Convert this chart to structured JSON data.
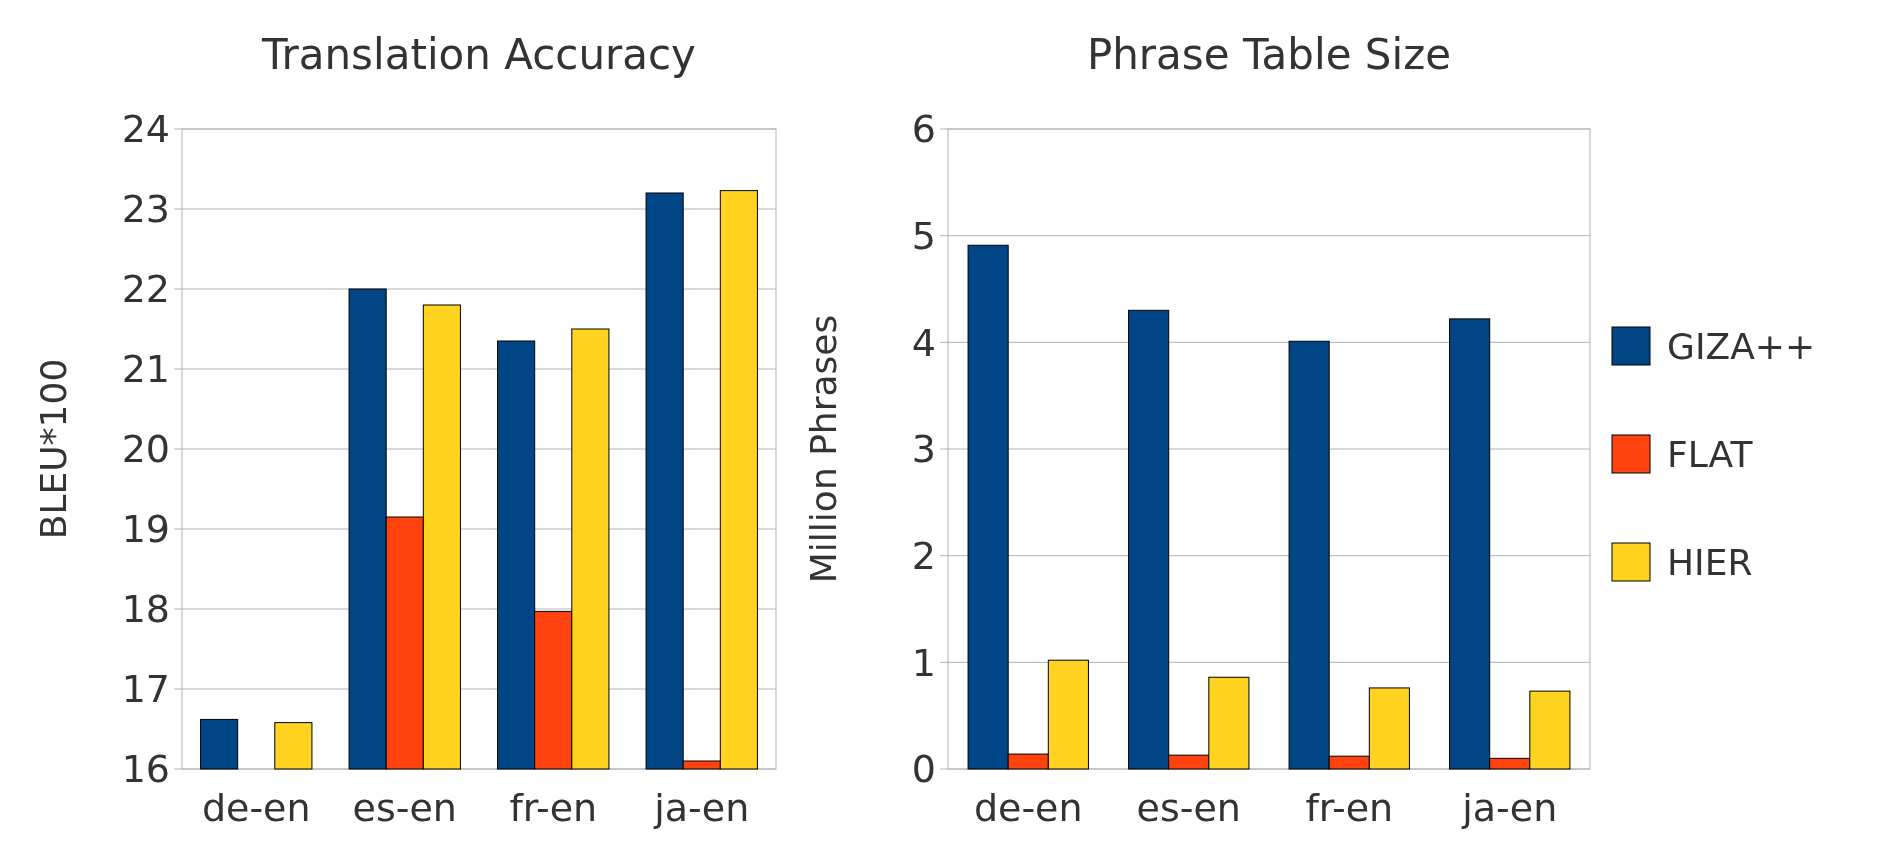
{
  "chart_data": [
    {
      "type": "bar",
      "title": "Translation Accuracy",
      "ylabel": "BLEU*100",
      "categories": [
        "de-en",
        "es-en",
        "fr-en",
        "ja-en"
      ],
      "series": [
        {
          "color": "#004586",
          "values": [
            16.62,
            22.0,
            21.35,
            23.2
          ]
        },
        {
          "color": "#ff420e",
          "values": [
            null,
            19.15,
            17.97,
            16.1
          ]
        },
        {
          "color": "#ffd320",
          "values": [
            16.58,
            21.8,
            21.5,
            23.23
          ]
        }
      ],
      "ylim": [
        16,
        24
      ],
      "yticks": [
        16,
        17,
        18,
        19,
        20,
        21,
        22,
        23,
        24
      ],
      "grid": "y",
      "legend": false
    },
    {
      "type": "bar",
      "title": "Phrase Table Size",
      "ylabel": "Million Phrases",
      "categories": [
        "de-en",
        "es-en",
        "fr-en",
        "ja-en"
      ],
      "series": [
        {
          "name": "GIZA++",
          "color": "#004586",
          "values": [
            4.91,
            4.3,
            4.01,
            4.22
          ]
        },
        {
          "name": "FLAT",
          "color": "#ff420e",
          "values": [
            0.14,
            0.13,
            0.12,
            0.1
          ]
        },
        {
          "name": "HIER",
          "color": "#ffd320",
          "values": [
            1.02,
            0.86,
            0.76,
            0.73
          ]
        }
      ],
      "ylim": [
        0,
        6
      ],
      "yticks": [
        0,
        1,
        2,
        3,
        4,
        5,
        6
      ],
      "grid": "y",
      "legend": "right"
    }
  ]
}
